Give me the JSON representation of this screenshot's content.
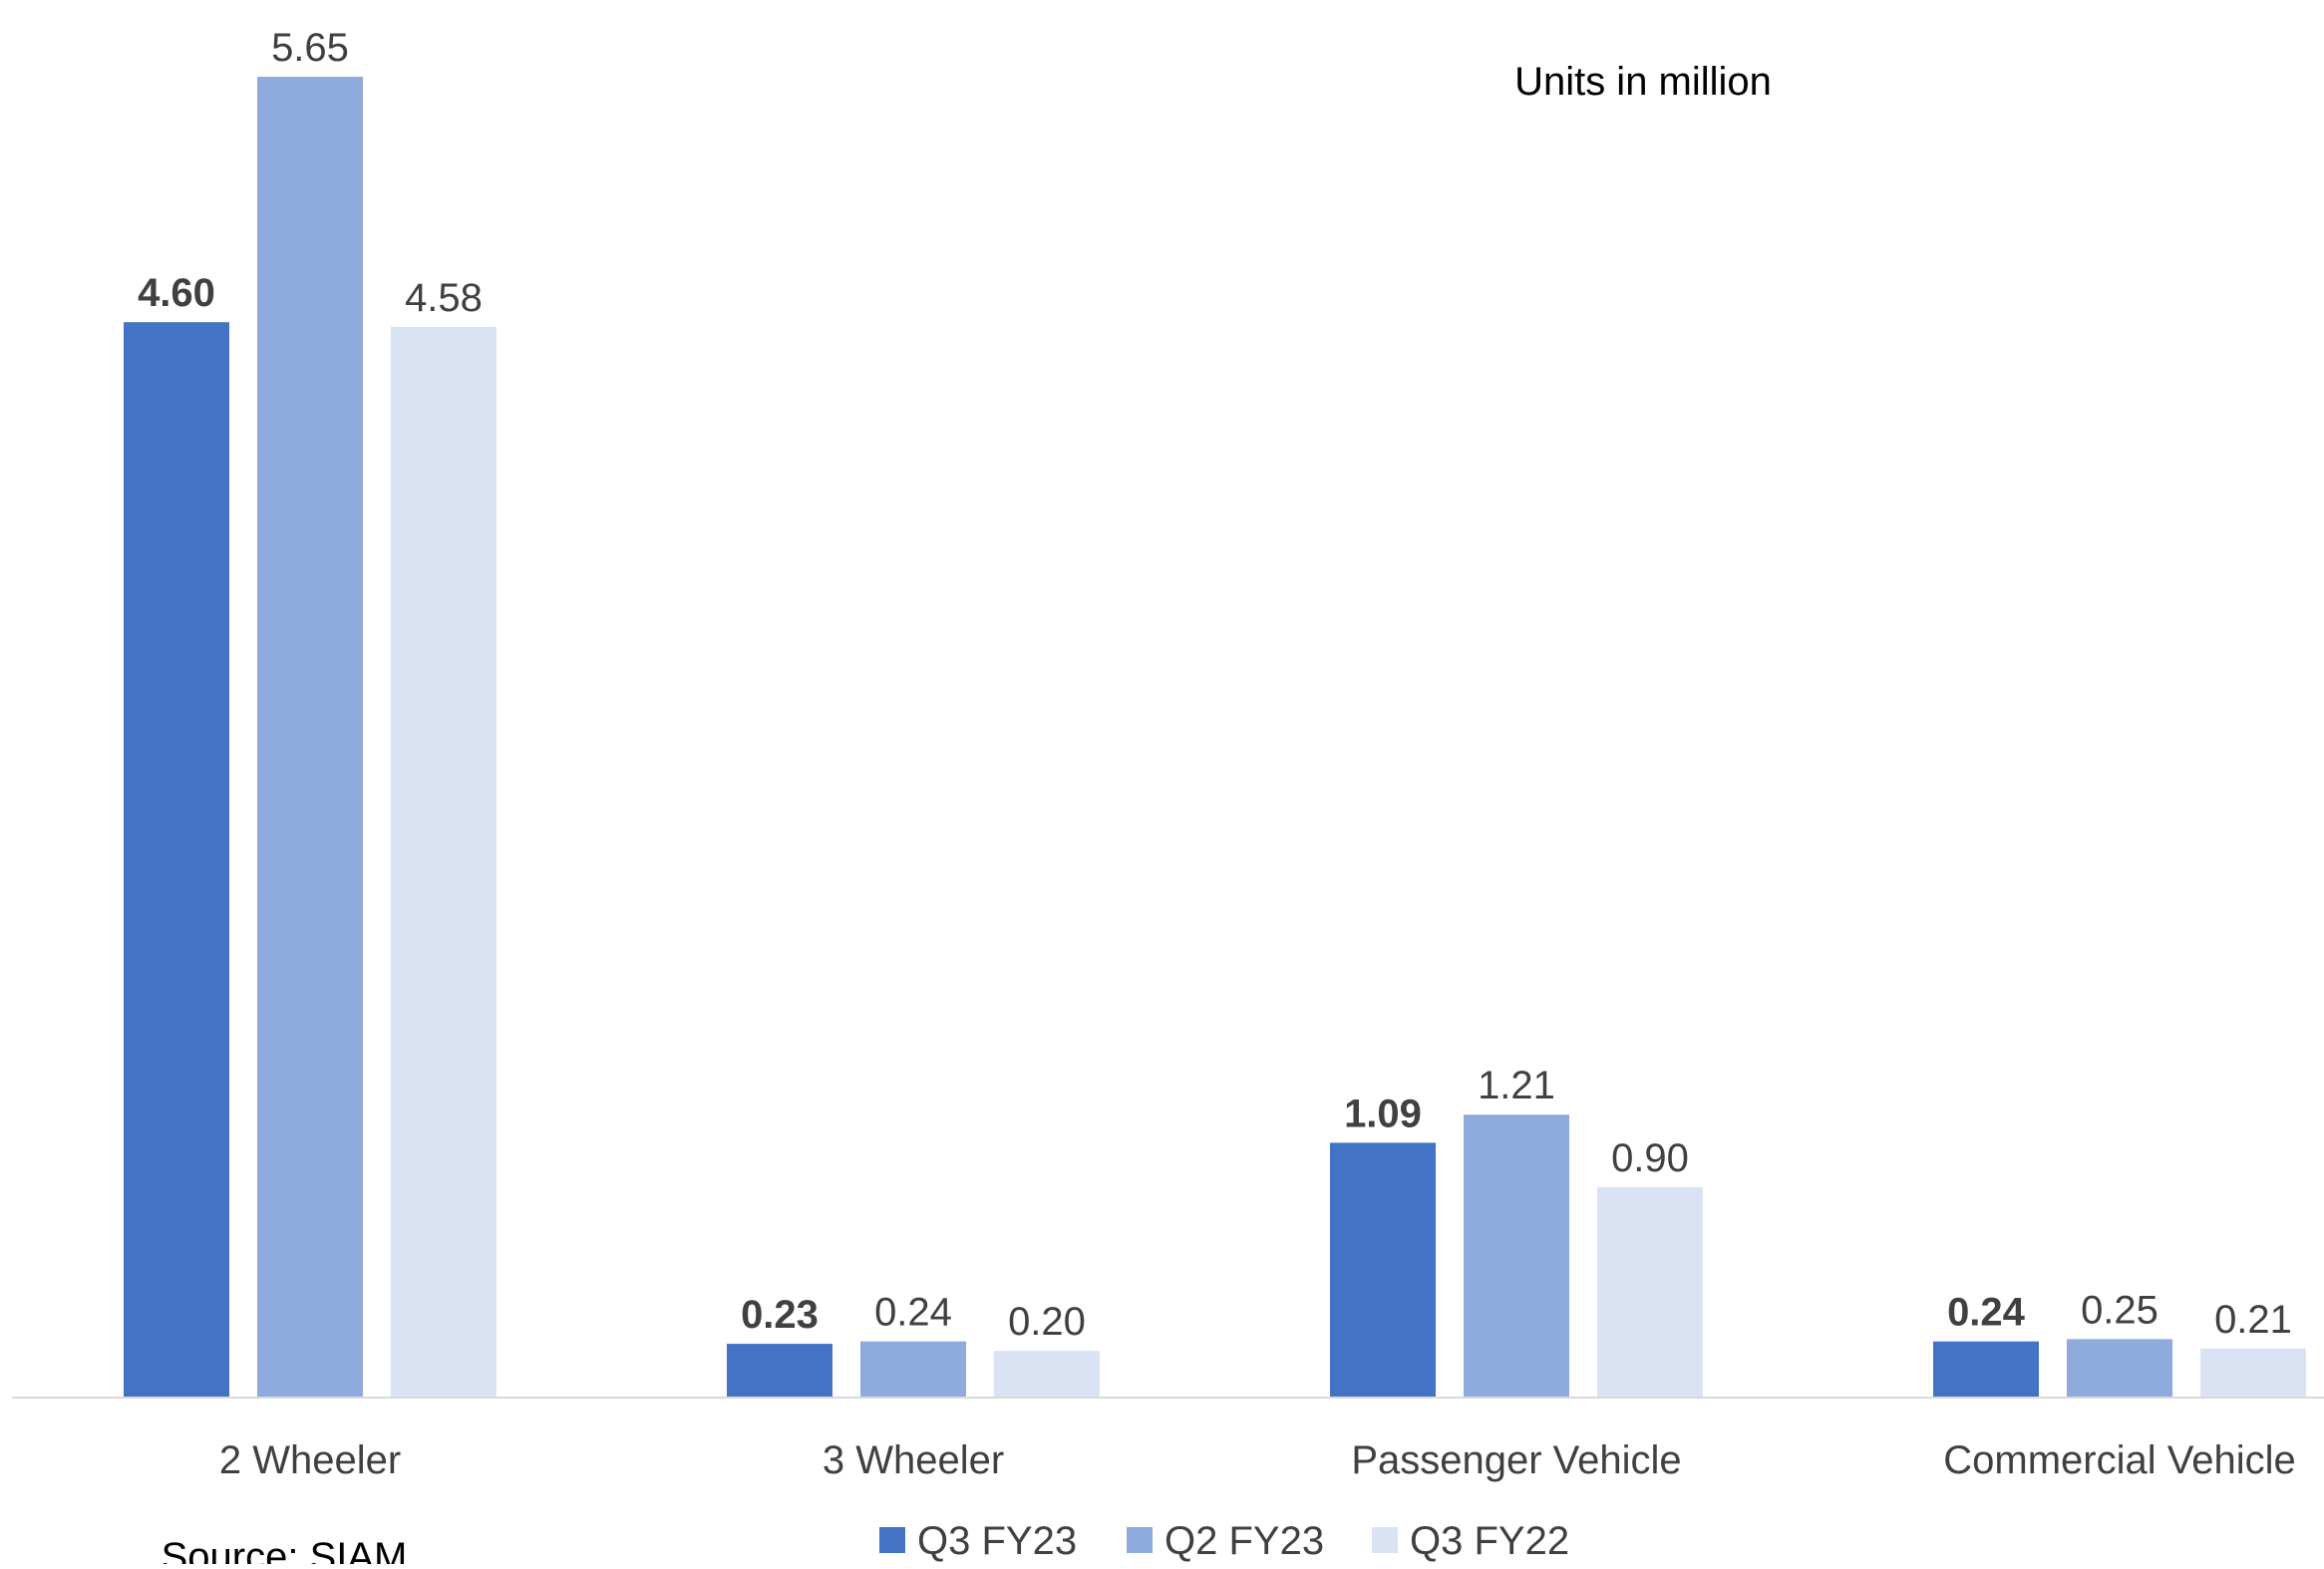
{
  "chart_data": {
    "type": "bar",
    "title": "",
    "annotation": "Units in million",
    "source": "Source: SIAM",
    "xlabel": "",
    "ylabel": "",
    "categories": [
      "2 Wheeler",
      "3 Wheeler",
      "Passenger Vehicle",
      "Commercial Vehicle"
    ],
    "series": [
      {
        "name": "Q3 FY23",
        "color": "#4472C4",
        "bold_labels": true,
        "values": [
          4.6,
          0.23,
          1.09,
          0.24
        ],
        "labels": [
          "4.60",
          "0.23",
          "1.09",
          "0.24"
        ]
      },
      {
        "name": "Q2 FY23",
        "color": "#8FAADC",
        "bold_labels": false,
        "values": [
          5.65,
          0.24,
          1.21,
          0.25
        ],
        "labels": [
          "5.65",
          "0.24",
          "1.21",
          "0.25"
        ]
      },
      {
        "name": "Q3 FY22",
        "color": "#DAE3F3",
        "bold_labels": false,
        "values": [
          4.58,
          0.2,
          0.9,
          0.21
        ],
        "labels": [
          "4.58",
          "0.20",
          "0.90",
          "0.21"
        ]
      }
    ],
    "ylim": [
      0,
      5.65
    ],
    "grid": false,
    "legend_position": "bottom-center",
    "axis_color": "#D9D9D9",
    "text_color": "#404040"
  }
}
